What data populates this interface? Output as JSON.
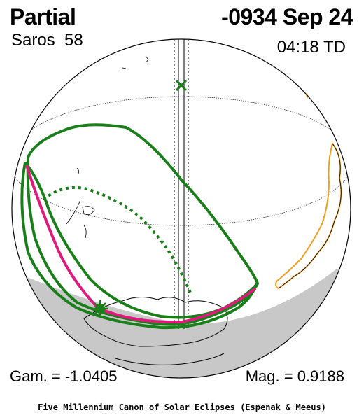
{
  "header": {
    "eclipse_type": "Partial",
    "date": "-0934 Sep 24",
    "saros": "Saros  58",
    "time": "04:18 TD"
  },
  "footer": {
    "gamma": "Gam. = -1.0405",
    "magnitude": "Mag. = 0.9188",
    "credit": "Five Millennium Canon of Solar Eclipses (Espenak & Meeus)"
  },
  "colors": {
    "path_outline": "#1a7f1a",
    "central_line": "#e0197d",
    "night_shade": "#c8c8c8",
    "coast_highlight": "#f0a020",
    "grid": "#000000"
  },
  "icons": {
    "greatest_eclipse": "asterisk-circle-marker",
    "sub_solar_point": "x-marker"
  }
}
